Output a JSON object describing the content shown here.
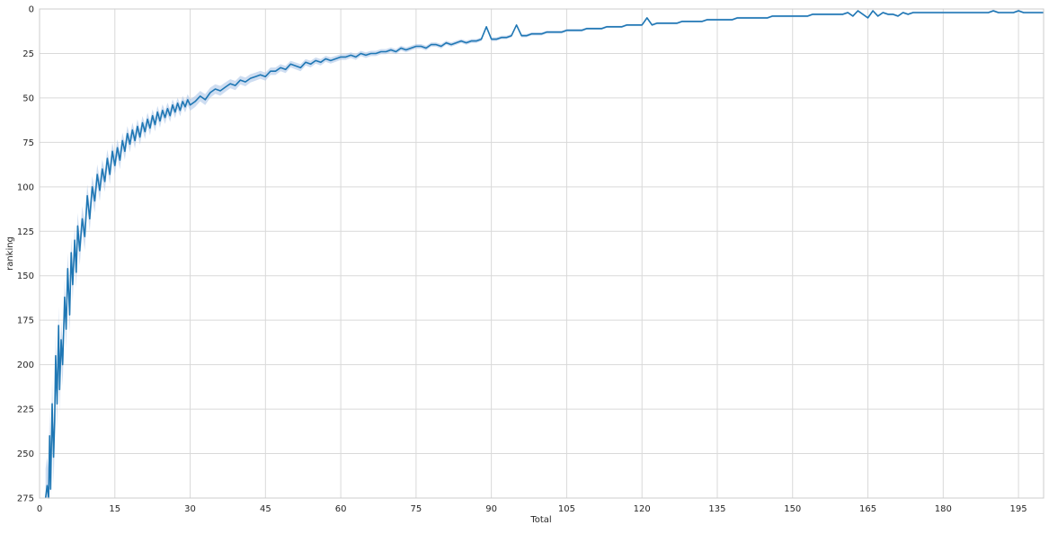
{
  "chart_data": {
    "type": "line",
    "title": "",
    "xlabel": "Total",
    "ylabel": "ranking",
    "xlim": [
      0,
      200
    ],
    "ylim": [
      275,
      0
    ],
    "y_inverted": true,
    "grid": true,
    "legend": "none",
    "xticks": [
      0,
      15,
      30,
      45,
      60,
      75,
      90,
      105,
      120,
      135,
      150,
      165,
      180,
      195
    ],
    "yticks": [
      0,
      25,
      50,
      75,
      100,
      125,
      150,
      175,
      200,
      225,
      250,
      275
    ],
    "colors": {
      "line": "#1f77b4",
      "band": "#aec7e8",
      "grid": "#d9d9d9",
      "axis": "#cccccc"
    },
    "series": [
      {
        "x": [
          1.2,
          1.5,
          1.8,
          2.0,
          2.2,
          2.5,
          2.8,
          3.0,
          3.2,
          3.5,
          3.8,
          4.0,
          4.3,
          4.6,
          5.0,
          5.3,
          5.6,
          6.0,
          6.3,
          6.6,
          7.0,
          7.3,
          7.6,
          8.0,
          8.5,
          9.0,
          9.5,
          10.0,
          10.5,
          11.0,
          11.5,
          12.0,
          12.5,
          13.0,
          13.5,
          14.0,
          14.5,
          15.0,
          15.5,
          16.0,
          16.5,
          17.0,
          17.5,
          18.0,
          18.5,
          19.0,
          19.5,
          20.0,
          20.5,
          21.0,
          21.5,
          22.0,
          22.5,
          23.0,
          23.5,
          24.0,
          24.5,
          25.0,
          25.5,
          26.0,
          26.5,
          27.0,
          27.5,
          28.0,
          28.5,
          29.0,
          29.5,
          30.0,
          31.0,
          32.0,
          33.0,
          34.0,
          35.0,
          36.0,
          37.0,
          38.0,
          39.0,
          40.0,
          41.0,
          42.0,
          43.0,
          44.0,
          45.0,
          46.0,
          47.0,
          48.0,
          49.0,
          50.0,
          51.0,
          52.0,
          53.0,
          54.0,
          55.0,
          56.0,
          57.0,
          58.0,
          59.0,
          60.0,
          61.0,
          62.0,
          63.0,
          64.0,
          65.0,
          66.0,
          67.0,
          68.0,
          69.0,
          70.0,
          71.0,
          72.0,
          73.0,
          74.0,
          75.0,
          76.0,
          77.0,
          78.0,
          79.0,
          80.0,
          81.0,
          82.0,
          83.0,
          84.0,
          85.0,
          86.0,
          87.0,
          88.0,
          89.0,
          90.0,
          91.0,
          92.0,
          93.0,
          94.0,
          95.0,
          96.0,
          97.0,
          98.0,
          99.0,
          100.0,
          101.0,
          102.0,
          103.0,
          104.0,
          105.0,
          106.0,
          107.0,
          108.0,
          109.0,
          110.0,
          111.0,
          112.0,
          113.0,
          114.0,
          115.0,
          116.0,
          117.0,
          118.0,
          119.0,
          120.0,
          121.0,
          122.0,
          123.0,
          124.0,
          125.0,
          126.0,
          127.0,
          128.0,
          129.0,
          130.0,
          131.0,
          132.0,
          133.0,
          134.0,
          135.0,
          136.0,
          137.0,
          138.0,
          139.0,
          140.0,
          141.0,
          142.0,
          143.0,
          144.0,
          145.0,
          146.0,
          147.0,
          148.0,
          149.0,
          150.0,
          151.0,
          152.0,
          153.0,
          154.0,
          155.0,
          156.0,
          157.0,
          158.0,
          159.0,
          160.0,
          161.0,
          162.0,
          163.0,
          164.0,
          165.0,
          166.0,
          167.0,
          168.0,
          169.0,
          170.0,
          171.0,
          172.0,
          173.0,
          174.0,
          175.0,
          176.0,
          177.0,
          178.0,
          179.0,
          180.0,
          181.0,
          182.0,
          183.0,
          184.0,
          185.0,
          186.0,
          187.0,
          188.0,
          189.0,
          190.0,
          191.0,
          192.0,
          193.0,
          194.0,
          195.0,
          196.0,
          197.0,
          198.0,
          199.0,
          200.0
        ],
        "values": [
          275,
          268,
          275,
          240,
          270,
          222,
          252,
          232,
          195,
          222,
          178,
          214,
          186,
          200,
          162,
          180,
          146,
          172,
          137,
          155,
          130,
          148,
          122,
          136,
          118,
          128,
          105,
          118,
          100,
          108,
          93,
          102,
          90,
          97,
          84,
          93,
          80,
          88,
          78,
          85,
          74,
          80,
          70,
          76,
          68,
          74,
          66,
          72,
          64,
          69,
          62,
          67,
          60,
          65,
          58,
          63,
          57,
          61,
          56,
          60,
          54,
          58,
          53,
          57,
          52,
          55,
          51,
          54,
          52,
          49,
          51,
          47,
          45,
          46,
          44,
          42,
          43,
          40,
          41,
          39,
          38,
          37,
          38,
          35,
          35,
          33,
          34,
          31,
          32,
          33,
          30,
          31,
          29,
          30,
          28,
          29,
          28,
          27,
          27,
          26,
          27,
          25,
          26,
          25,
          25,
          24,
          24,
          23,
          24,
          22,
          23,
          22,
          21,
          21,
          22,
          20,
          20,
          21,
          19,
          20,
          19,
          18,
          19,
          18,
          18,
          17,
          10,
          17,
          17,
          16,
          16,
          15,
          9,
          15,
          15,
          14,
          14,
          14,
          13,
          13,
          13,
          13,
          12,
          12,
          12,
          12,
          11,
          11,
          11,
          11,
          10,
          10,
          10,
          10,
          9,
          9,
          9,
          9,
          5,
          9,
          8,
          8,
          8,
          8,
          8,
          7,
          7,
          7,
          7,
          7,
          6,
          6,
          6,
          6,
          6,
          6,
          5,
          5,
          5,
          5,
          5,
          5,
          5,
          4,
          4,
          4,
          4,
          4,
          4,
          4,
          4,
          3,
          3,
          3,
          3,
          3,
          3,
          3,
          2,
          4,
          1,
          3,
          5,
          1,
          4,
          2,
          3,
          3,
          4,
          2,
          3,
          2,
          2,
          2,
          2,
          2,
          2,
          2,
          2,
          2,
          2,
          2,
          2,
          2,
          2,
          2,
          2,
          1,
          2,
          2,
          2,
          2,
          1,
          2,
          2,
          2,
          2,
          2
        ]
      }
    ]
  }
}
